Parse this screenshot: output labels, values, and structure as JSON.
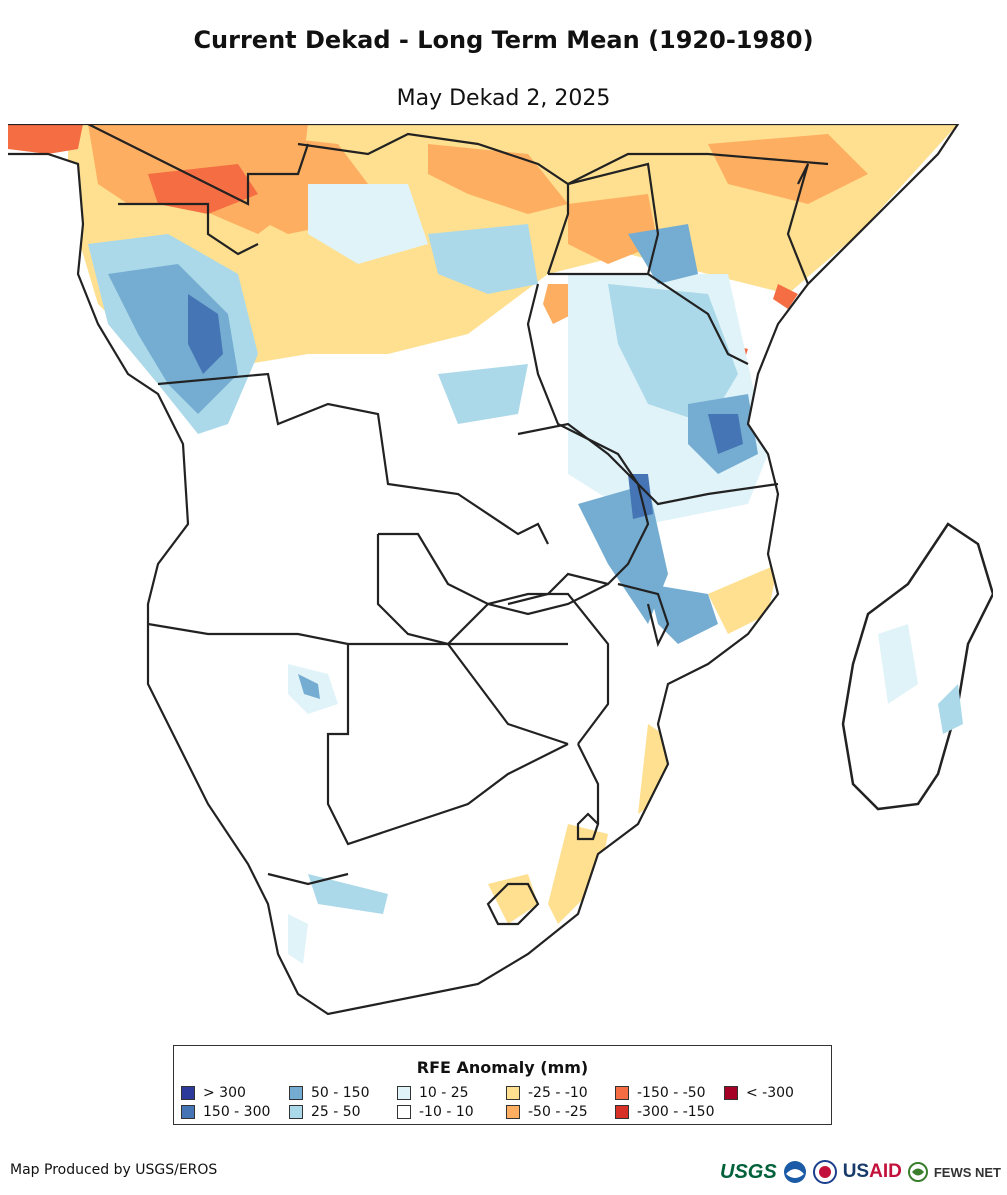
{
  "title": "Current Dekad - Long Term Mean (1920-1980)",
  "subtitle": "May Dekad 2, 2025",
  "legend": {
    "title": "RFE Anomaly (mm)",
    "items": [
      {
        "label": "> 300",
        "color": "#2b3a9b"
      },
      {
        "label": "150 - 300",
        "color": "#4575b4"
      },
      {
        "label": "50 - 150",
        "color": "#74add1"
      },
      {
        "label": "25 - 50",
        "color": "#abd9e9"
      },
      {
        "label": "10 - 25",
        "color": "#e0f3f8"
      },
      {
        "label": "-10 - 10",
        "color": "#ffffff"
      },
      {
        "label": "-25 - -10",
        "color": "#fee090"
      },
      {
        "label": "-50 - -25",
        "color": "#fdae61"
      },
      {
        "label": "-150 - -50",
        "color": "#f46d43"
      },
      {
        "label": "-300 - -150",
        "color": "#d73027"
      },
      {
        "label": "< -300",
        "color": "#a50026"
      }
    ]
  },
  "credit": "Map Produced by USGS/EROS",
  "logos": {
    "usgs": "USGS",
    "usaid_us": "US",
    "usaid_aid": "AID",
    "fews": "FEWS NET"
  },
  "icons": [
    "noaa-icon",
    "nasa-icon",
    "fews-globe-icon"
  ]
}
